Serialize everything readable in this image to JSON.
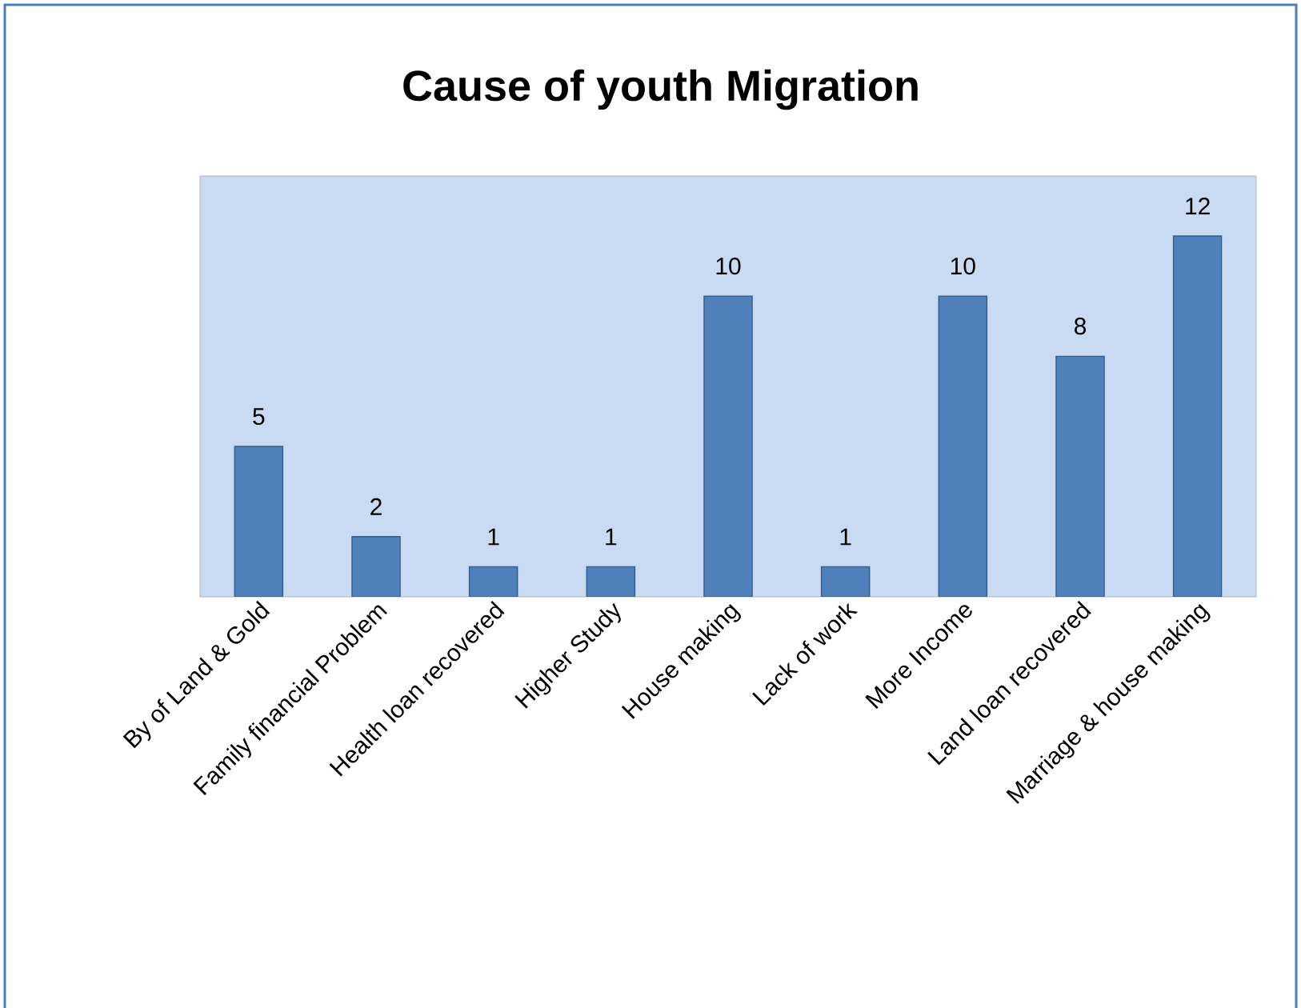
{
  "chart_data": {
    "type": "bar",
    "title": "Cause of youth Migration",
    "categories": [
      "By of Land & Gold",
      "Family financial Problem",
      "Health loan recovered",
      "Higher Study",
      "House making",
      "Lack of work",
      "More Income",
      "Land loan recovered",
      "Marriage & house making"
    ],
    "values": [
      5,
      2,
      1,
      1,
      10,
      1,
      10,
      8,
      12
    ],
    "color": "#4f81bd",
    "ylim": [
      0,
      14
    ],
    "data_labels": true,
    "tick_labels": "x"
  }
}
